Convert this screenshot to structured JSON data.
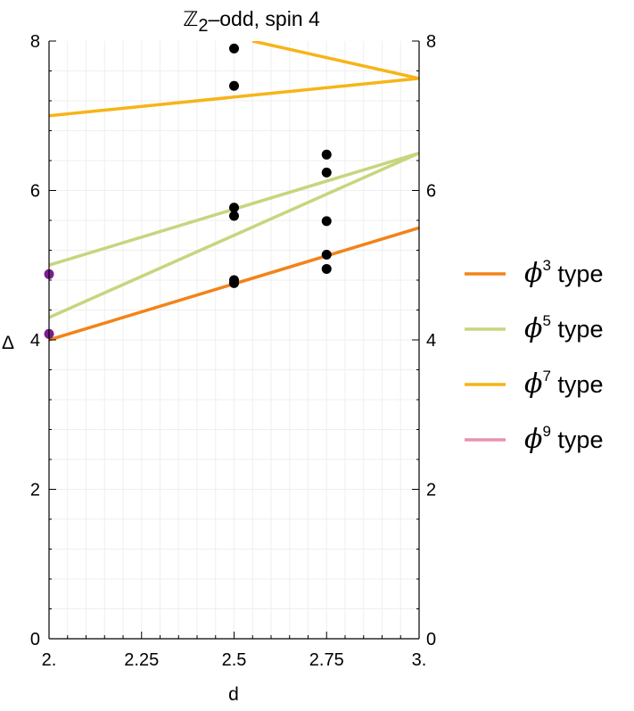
{
  "chart_data": {
    "type": "line",
    "title": "ℤ₂–odd, spin 4",
    "title_main": "ℤ",
    "title_sub": "2",
    "title_rest": "–odd, spin 4",
    "xlabel": "d",
    "ylabel": "Δ",
    "xlim": [
      2.0,
      3.0
    ],
    "ylim": [
      0,
      8
    ],
    "x_ticks": [
      2.0,
      2.25,
      2.5,
      2.75,
      3.0
    ],
    "x_tick_labels": [
      "2.",
      "2.25",
      "2.5",
      "2.75",
      "3."
    ],
    "y_ticks": [
      0,
      2,
      4,
      6,
      8
    ],
    "y_tick_labels": [
      "0",
      "2",
      "4",
      "6",
      "8"
    ],
    "right_axis_ticks": true,
    "grid": true,
    "legend_position": "right",
    "series": [
      {
        "name": "ϕ3 type",
        "symbol": "ϕ",
        "power": "3",
        "suffix": "type",
        "color": "#F28318",
        "lines": [
          [
            [
              2.0,
              4.0
            ],
            [
              3.0,
              5.5
            ]
          ]
        ]
      },
      {
        "name": "ϕ5 type",
        "symbol": "ϕ",
        "power": "5",
        "suffix": "type",
        "color": "#C5D67E",
        "lines": [
          [
            [
              2.0,
              5.0
            ],
            [
              3.0,
              6.5
            ]
          ],
          [
            [
              2.0,
              4.3
            ],
            [
              3.0,
              6.5
            ]
          ]
        ]
      },
      {
        "name": "ϕ7 type",
        "symbol": "ϕ",
        "power": "7",
        "suffix": "type",
        "color": "#F7B418",
        "lines": [
          [
            [
              2.0,
              7.0
            ],
            [
              3.0,
              7.5
            ]
          ],
          [
            [
              2.55,
              8.0
            ],
            [
              3.0,
              7.5
            ]
          ]
        ]
      },
      {
        "name": "ϕ9 type",
        "symbol": "ϕ",
        "power": "9",
        "suffix": "type",
        "color": "#E892B2",
        "lines": []
      }
    ],
    "points": [
      {
        "x": 2.5,
        "y": 7.9,
        "color": "#000000"
      },
      {
        "x": 2.5,
        "y": 7.4,
        "color": "#000000"
      },
      {
        "x": 2.5,
        "y": 5.77,
        "color": "#000000"
      },
      {
        "x": 2.5,
        "y": 5.66,
        "color": "#000000"
      },
      {
        "x": 2.5,
        "y": 4.8,
        "color": "#000000"
      },
      {
        "x": 2.5,
        "y": 4.76,
        "color": "#000000"
      },
      {
        "x": 2.75,
        "y": 6.48,
        "color": "#000000"
      },
      {
        "x": 2.75,
        "y": 6.24,
        "color": "#000000"
      },
      {
        "x": 2.75,
        "y": 5.59,
        "color": "#000000"
      },
      {
        "x": 2.75,
        "y": 5.14,
        "color": "#000000"
      },
      {
        "x": 2.75,
        "y": 4.95,
        "color": "#000000"
      },
      {
        "x": 2.0,
        "y": 4.88,
        "color": "#7B1E8E"
      },
      {
        "x": 2.0,
        "y": 4.08,
        "color": "#7B1E8E"
      }
    ]
  }
}
